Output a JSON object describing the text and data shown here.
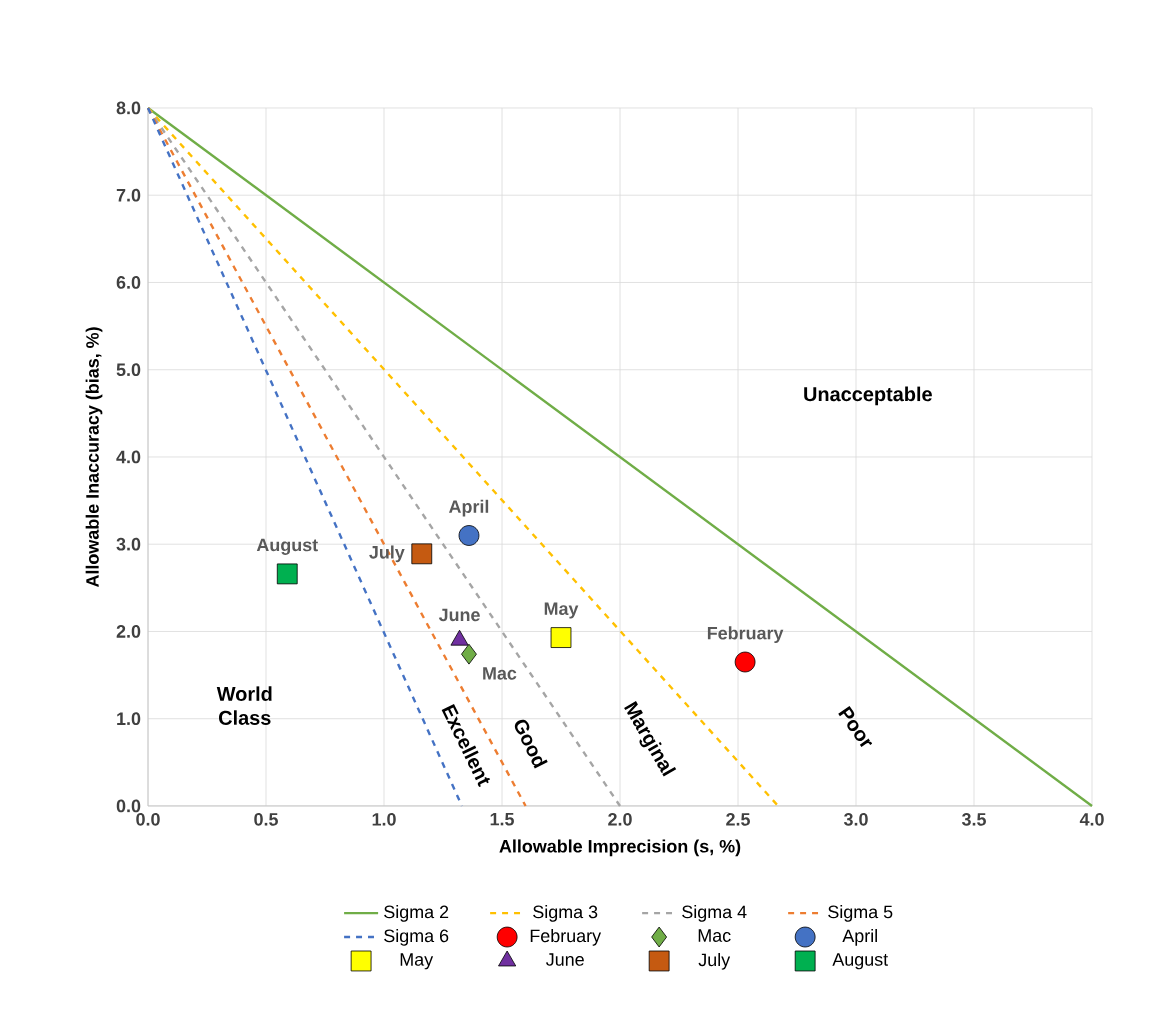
{
  "chart_data": {
    "type": "scatter",
    "xlabel": "Allowable Imprecision (s, %)",
    "ylabel": "Allowable Inaccuracy (bias, %)",
    "xlim": [
      0,
      4
    ],
    "ylim": [
      0,
      8
    ],
    "xticks": [
      {
        "value": 0,
        "label": "0.0"
      },
      {
        "value": 0.5,
        "label": "0.5"
      },
      {
        "value": 1,
        "label": "1.0"
      },
      {
        "value": 1.5,
        "label": "1.5"
      },
      {
        "value": 2,
        "label": "2.0"
      },
      {
        "value": 2.5,
        "label": "2.5"
      },
      {
        "value": 3,
        "label": "3.0"
      },
      {
        "value": 3.5,
        "label": "3.5"
      },
      {
        "value": 4,
        "label": "4.0"
      }
    ],
    "yticks": [
      {
        "value": 0,
        "label": "0.0"
      },
      {
        "value": 1,
        "label": "1.0"
      },
      {
        "value": 2,
        "label": "2.0"
      },
      {
        "value": 3,
        "label": "3.0"
      },
      {
        "value": 4,
        "label": "4.0"
      },
      {
        "value": 5,
        "label": "5.0"
      },
      {
        "value": 6,
        "label": "6.0"
      },
      {
        "value": 7,
        "label": "7.0"
      },
      {
        "value": 8,
        "label": "8.0"
      }
    ],
    "grid": true,
    "legend": "bottom",
    "series": [
      {
        "name": "Sigma 2",
        "type": "line",
        "color": "#70ad47",
        "line_style": "solid",
        "marker": "none",
        "x": [
          0,
          4
        ],
        "values": [
          8,
          0
        ]
      },
      {
        "name": "Sigma 3",
        "type": "line",
        "color": "#ffc000",
        "line_style": "dashed",
        "marker": "none",
        "x": [
          0,
          2.67
        ],
        "values": [
          8,
          0
        ]
      },
      {
        "name": "Sigma 4",
        "type": "line",
        "color": "#a5a5a5",
        "line_style": "dashed",
        "marker": "none",
        "x": [
          0,
          2
        ],
        "values": [
          8,
          0
        ]
      },
      {
        "name": "Sigma 5",
        "type": "line",
        "color": "#ed7d31",
        "line_style": "dashed",
        "marker": "none",
        "x": [
          0,
          1.6
        ],
        "values": [
          8,
          0
        ]
      },
      {
        "name": "Sigma 6",
        "type": "line",
        "color": "#4472c4",
        "line_style": "dashed",
        "marker": "none",
        "x": [
          0,
          1.33
        ],
        "values": [
          8,
          0
        ]
      },
      {
        "name": "February",
        "color": "#ff0000",
        "marker": "circle",
        "x": [
          2.53
        ],
        "values": [
          1.65
        ]
      },
      {
        "name": "Mac",
        "color": "#70ad47",
        "marker": "diamond",
        "x": [
          1.36
        ],
        "values": [
          1.74
        ]
      },
      {
        "name": "April",
        "color": "#4472c4",
        "marker": "circle",
        "x": [
          1.36
        ],
        "values": [
          3.1
        ]
      },
      {
        "name": "May",
        "color": "#ffff00",
        "marker": "square",
        "x": [
          1.75
        ],
        "values": [
          1.93
        ]
      },
      {
        "name": "June",
        "color": "#7030a0",
        "marker": "triangle",
        "x": [
          1.32
        ],
        "values": [
          1.9
        ]
      },
      {
        "name": "July",
        "color": "#c55a11",
        "marker": "square",
        "x": [
          1.16
        ],
        "values": [
          2.89
        ]
      },
      {
        "name": "August",
        "color": "#00b050",
        "marker": "square",
        "x": [
          0.59
        ],
        "values": [
          2.66
        ]
      }
    ],
    "annotations": [
      "Unacceptable",
      "World Class",
      "Excellent",
      "Good",
      "Marginal",
      "Poor"
    ]
  }
}
